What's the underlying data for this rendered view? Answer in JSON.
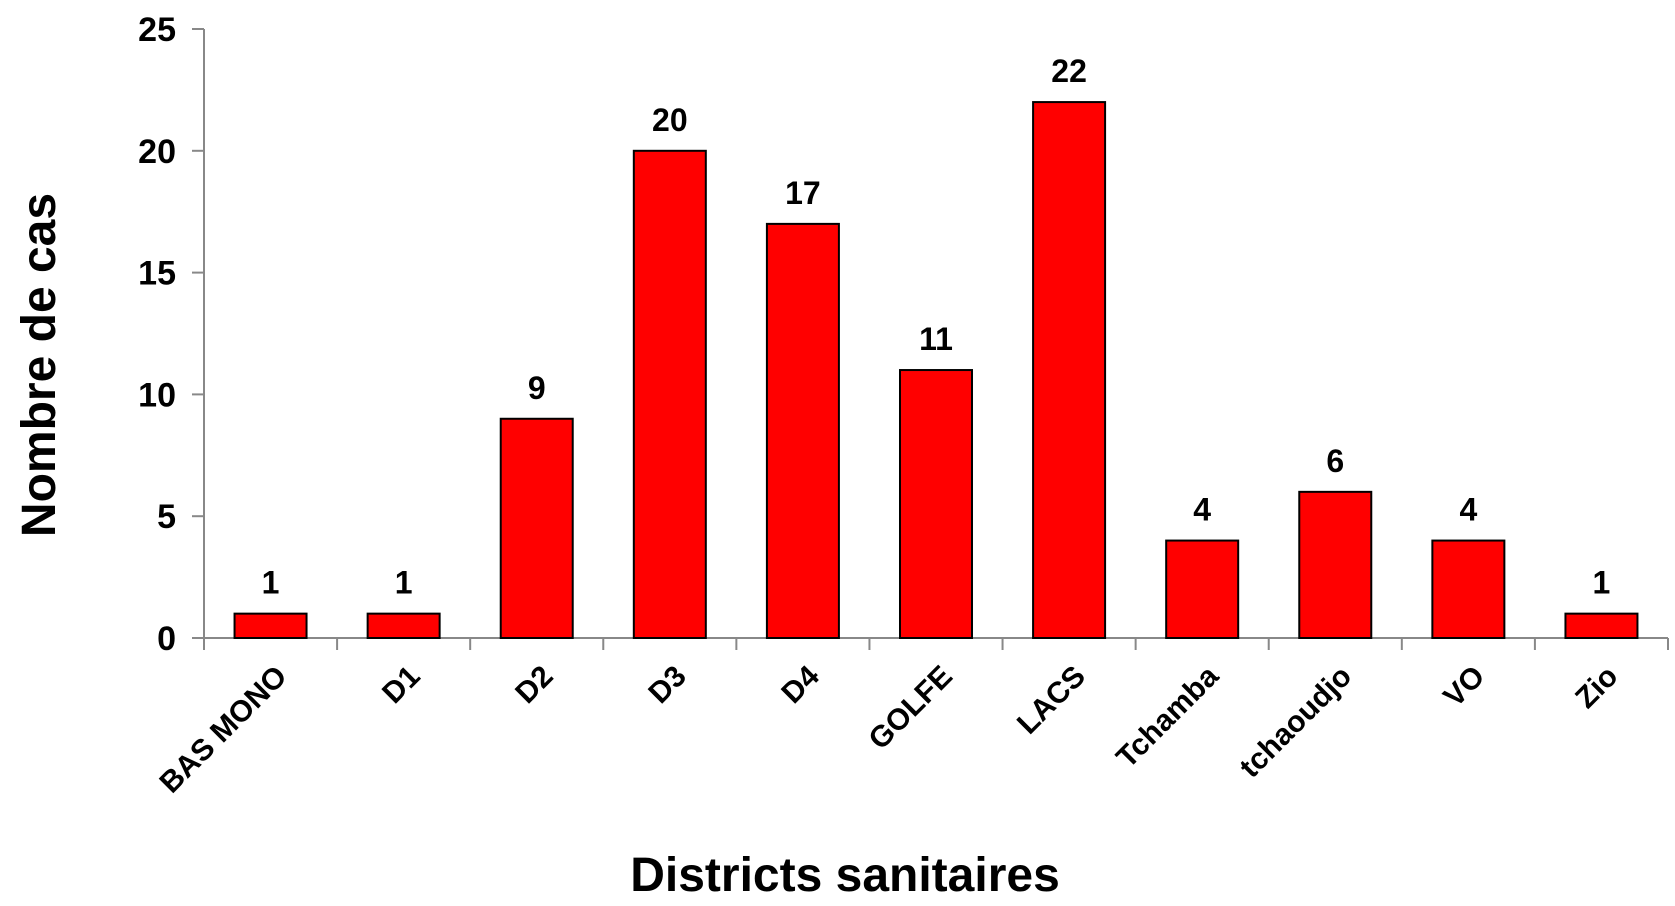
{
  "chart_data": {
    "type": "bar",
    "categories": [
      "BAS MONO",
      "D1",
      "D2",
      "D3",
      "D4",
      "GOLFE",
      "LACS",
      "Tchamba",
      "tchaoudjo",
      "VO",
      "Zio"
    ],
    "values": [
      1,
      1,
      9,
      20,
      17,
      11,
      22,
      4,
      6,
      4,
      1
    ],
    "xlabel": "Districts sanitaires",
    "ylabel": "Nombre de cas",
    "ylim": [
      0,
      25
    ],
    "yticks": [
      0,
      5,
      10,
      15,
      20,
      25
    ],
    "grid": false,
    "bar_color": "#ff0000",
    "bar_edge_color": "#000000",
    "data_labels": true
  }
}
